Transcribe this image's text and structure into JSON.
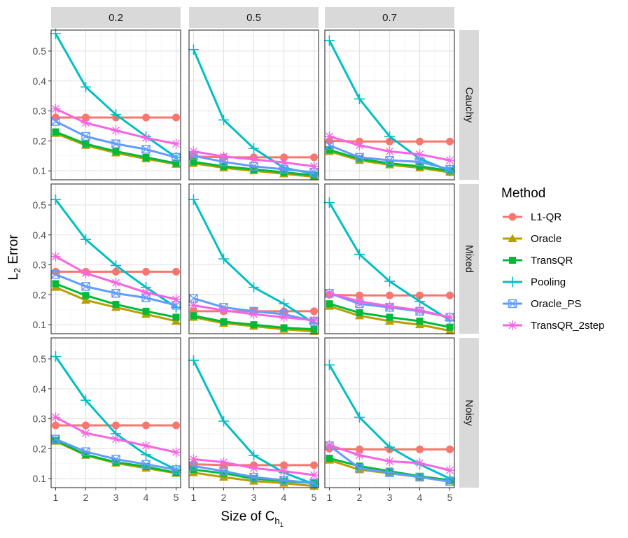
{
  "chart_data": {
    "type": "line",
    "layout": "facet-grid",
    "col_facets": [
      "0.2",
      "0.5",
      "0.7"
    ],
    "row_facets": [
      "Cauchy",
      "Mixed",
      "Noisy"
    ],
    "x": [
      1,
      2,
      3,
      4,
      5
    ],
    "xlabel": "Size of C",
    "xlabel_sub": "h",
    "xlabel_subsub": "1",
    "ylabel": "L",
    "ylabel_sub": "2",
    "ylabel_rest": " Error",
    "ylim": [
      0.07,
      0.57
    ],
    "xlim": [
      0.85,
      5.15
    ],
    "yticks": [
      0.1,
      0.2,
      0.3,
      0.4,
      0.5
    ],
    "ytick_labels": [
      "0.1",
      "0.2",
      "0.3",
      "0.4",
      "0.5"
    ],
    "xtick_labels": [
      "1",
      "2",
      "3",
      "4",
      "5"
    ],
    "grid": true,
    "legend": {
      "title": "Method",
      "placement": "right",
      "items": [
        "L1-QR",
        "Oracle",
        "TransQR",
        "Pooling",
        "Oracle_PS",
        "TransQR_2step"
      ]
    },
    "methods": [
      {
        "name": "L1-QR",
        "color": "#F8766D",
        "shape": "circle"
      },
      {
        "name": "Oracle",
        "color": "#B79F00",
        "shape": "triangle"
      },
      {
        "name": "TransQR",
        "color": "#00BA38",
        "shape": "square"
      },
      {
        "name": "Pooling",
        "color": "#00BFC4",
        "shape": "plus"
      },
      {
        "name": "Oracle_PS",
        "color": "#619CFF",
        "shape": "boxx"
      },
      {
        "name": "TransQR_2step",
        "color": "#F564E3",
        "shape": "asterisk"
      }
    ],
    "panels": [
      {
        "row": "Cauchy",
        "col": "0.2",
        "series": [
          {
            "name": "L1-QR",
            "values": [
              0.278,
              0.278,
              0.278,
              0.278,
              0.278
            ]
          },
          {
            "name": "Oracle",
            "values": [
              0.225,
              0.185,
              0.16,
              0.14,
              0.122
            ]
          },
          {
            "name": "TransQR",
            "values": [
              0.23,
              0.19,
              0.165,
              0.145,
              0.125
            ]
          },
          {
            "name": "Pooling",
            "values": [
              0.558,
              0.38,
              0.288,
              0.215,
              0.145
            ]
          },
          {
            "name": "Oracle_PS",
            "values": [
              0.265,
              0.215,
              0.19,
              0.172,
              0.145
            ]
          },
          {
            "name": "TransQR_2step",
            "values": [
              0.307,
              0.26,
              0.235,
              0.21,
              0.19
            ]
          }
        ]
      },
      {
        "row": "Cauchy",
        "col": "0.5",
        "series": [
          {
            "name": "L1-QR",
            "values": [
              0.148,
              0.145,
              0.145,
              0.145,
              0.145
            ]
          },
          {
            "name": "Oracle",
            "values": [
              0.125,
              0.11,
              0.1,
              0.09,
              0.08
            ]
          },
          {
            "name": "TransQR",
            "values": [
              0.13,
              0.115,
              0.105,
              0.095,
              0.085
            ]
          },
          {
            "name": "Pooling",
            "values": [
              0.505,
              0.27,
              0.175,
              0.11,
              0.09
            ]
          },
          {
            "name": "Oracle_PS",
            "values": [
              0.15,
              0.13,
              0.115,
              0.105,
              0.095
            ]
          },
          {
            "name": "TransQR_2step",
            "values": [
              0.165,
              0.148,
              0.138,
              0.128,
              0.115
            ]
          }
        ]
      },
      {
        "row": "Cauchy",
        "col": "0.7",
        "series": [
          {
            "name": "L1-QR",
            "values": [
              0.2,
              0.198,
              0.198,
              0.198,
              0.198
            ]
          },
          {
            "name": "Oracle",
            "values": [
              0.165,
              0.135,
              0.12,
              0.11,
              0.095
            ]
          },
          {
            "name": "TransQR",
            "values": [
              0.17,
              0.14,
              0.125,
              0.115,
              0.1
            ]
          },
          {
            "name": "Pooling",
            "values": [
              0.535,
              0.34,
              0.215,
              0.14,
              0.1
            ]
          },
          {
            "name": "Oracle_PS",
            "values": [
              0.185,
              0.145,
              0.135,
              0.13,
              0.105
            ]
          },
          {
            "name": "TransQR_2step",
            "values": [
              0.215,
              0.185,
              0.165,
              0.155,
              0.135
            ]
          }
        ]
      },
      {
        "row": "Mixed",
        "col": "0.2",
        "series": [
          {
            "name": "L1-QR",
            "values": [
              0.277,
              0.277,
              0.277,
              0.277,
              0.277
            ]
          },
          {
            "name": "Oracle",
            "values": [
              0.225,
              0.182,
              0.158,
              0.135,
              0.112
            ]
          },
          {
            "name": "TransQR",
            "values": [
              0.237,
              0.198,
              0.168,
              0.145,
              0.125
            ]
          },
          {
            "name": "Pooling",
            "values": [
              0.518,
              0.385,
              0.298,
              0.225,
              0.158
            ]
          },
          {
            "name": "Oracle_PS",
            "values": [
              0.268,
              0.228,
              0.205,
              0.19,
              0.165
            ]
          },
          {
            "name": "TransQR_2step",
            "values": [
              0.328,
              0.272,
              0.24,
              0.208,
              0.185
            ]
          }
        ]
      },
      {
        "row": "Mixed",
        "col": "0.5",
        "series": [
          {
            "name": "L1-QR",
            "values": [
              0.145,
              0.145,
              0.145,
              0.145,
              0.145
            ]
          },
          {
            "name": "Oracle",
            "values": [
              0.125,
              0.105,
              0.095,
              0.085,
              0.078
            ]
          },
          {
            "name": "TransQR",
            "values": [
              0.13,
              0.11,
              0.1,
              0.09,
              0.085
            ]
          },
          {
            "name": "Pooling",
            "values": [
              0.518,
              0.32,
              0.225,
              0.17,
              0.105
            ]
          },
          {
            "name": "Oracle_PS",
            "values": [
              0.188,
              0.158,
              0.145,
              0.135,
              0.112
            ]
          },
          {
            "name": "TransQR_2step",
            "values": [
              0.165,
              0.148,
              0.135,
              0.125,
              0.115
            ]
          }
        ]
      },
      {
        "row": "Mixed",
        "col": "0.7",
        "series": [
          {
            "name": "L1-QR",
            "values": [
              0.2,
              0.198,
              0.198,
              0.198,
              0.198
            ]
          },
          {
            "name": "Oracle",
            "values": [
              0.162,
              0.13,
              0.112,
              0.1,
              0.08
            ]
          },
          {
            "name": "TransQR",
            "values": [
              0.17,
              0.14,
              0.125,
              0.112,
              0.092
            ]
          },
          {
            "name": "Pooling",
            "values": [
              0.508,
              0.335,
              0.245,
              0.178,
              0.115
            ]
          },
          {
            "name": "Oracle_PS",
            "values": [
              0.205,
              0.17,
              0.158,
              0.145,
              0.125
            ]
          },
          {
            "name": "TransQR_2step",
            "values": [
              0.205,
              0.178,
              0.162,
              0.148,
              0.125
            ]
          }
        ]
      },
      {
        "row": "Noisy",
        "col": "0.2",
        "series": [
          {
            "name": "L1-QR",
            "values": [
              0.278,
              0.278,
              0.278,
              0.278,
              0.278
            ]
          },
          {
            "name": "Oracle",
            "values": [
              0.225,
              0.178,
              0.152,
              0.135,
              0.118
            ]
          },
          {
            "name": "TransQR",
            "values": [
              0.228,
              0.18,
              0.155,
              0.14,
              0.12
            ]
          },
          {
            "name": "Pooling",
            "values": [
              0.508,
              0.362,
              0.25,
              0.18,
              0.13
            ]
          },
          {
            "name": "Oracle_PS",
            "values": [
              0.232,
              0.19,
              0.165,
              0.148,
              0.13
            ]
          },
          {
            "name": "TransQR_2step",
            "values": [
              0.305,
              0.252,
              0.232,
              0.21,
              0.188
            ]
          }
        ]
      },
      {
        "row": "Noisy",
        "col": "0.5",
        "series": [
          {
            "name": "L1-QR",
            "values": [
              0.148,
              0.145,
              0.145,
              0.145,
              0.145
            ]
          },
          {
            "name": "Oracle",
            "values": [
              0.12,
              0.105,
              0.092,
              0.085,
              0.075
            ]
          },
          {
            "name": "TransQR",
            "values": [
              0.13,
              0.118,
              0.1,
              0.092,
              0.085
            ]
          },
          {
            "name": "Pooling",
            "values": [
              0.495,
              0.292,
              0.178,
              0.12,
              0.082
            ]
          },
          {
            "name": "Oracle_PS",
            "values": [
              0.142,
              0.125,
              0.105,
              0.095,
              0.085
            ]
          },
          {
            "name": "TransQR_2step",
            "values": [
              0.165,
              0.155,
              0.135,
              0.125,
              0.112
            ]
          }
        ]
      },
      {
        "row": "Noisy",
        "col": "0.7",
        "series": [
          {
            "name": "L1-QR",
            "values": [
              0.2,
              0.198,
              0.198,
              0.198,
              0.198
            ]
          },
          {
            "name": "Oracle",
            "values": [
              0.162,
              0.13,
              0.118,
              0.105,
              0.092
            ]
          },
          {
            "name": "TransQR",
            "values": [
              0.168,
              0.142,
              0.125,
              0.108,
              0.095
            ]
          },
          {
            "name": "Pooling",
            "values": [
              0.48,
              0.305,
              0.205,
              0.148,
              0.1
            ]
          },
          {
            "name": "Oracle_PS",
            "values": [
              0.21,
              0.135,
              0.12,
              0.105,
              0.09
            ]
          },
          {
            "name": "TransQR_2step",
            "values": [
              0.212,
              0.178,
              0.158,
              0.152,
              0.128
            ]
          }
        ]
      }
    ]
  }
}
